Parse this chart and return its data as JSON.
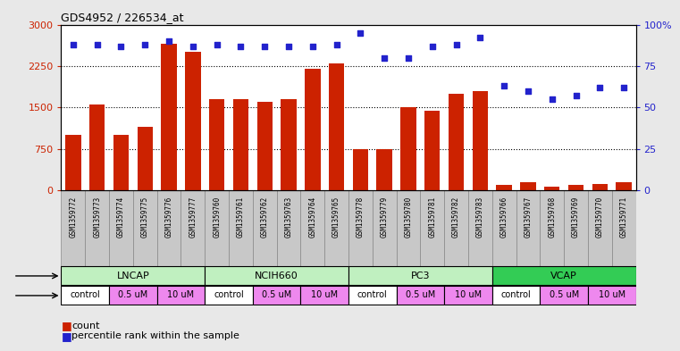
{
  "title": "GDS4952 / 226534_at",
  "samples": [
    "GSM1359772",
    "GSM1359773",
    "GSM1359774",
    "GSM1359775",
    "GSM1359776",
    "GSM1359777",
    "GSM1359760",
    "GSM1359761",
    "GSM1359762",
    "GSM1359763",
    "GSM1359764",
    "GSM1359765",
    "GSM1359778",
    "GSM1359779",
    "GSM1359780",
    "GSM1359781",
    "GSM1359782",
    "GSM1359783",
    "GSM1359766",
    "GSM1359767",
    "GSM1359768",
    "GSM1359769",
    "GSM1359770",
    "GSM1359771"
  ],
  "counts": [
    1000,
    1550,
    1000,
    1150,
    2650,
    2500,
    1650,
    1650,
    1600,
    1650,
    2200,
    2300,
    750,
    750,
    1500,
    1450,
    1750,
    1800,
    100,
    150,
    75,
    100,
    125,
    150
  ],
  "percentile": [
    88,
    88,
    87,
    88,
    90,
    87,
    88,
    87,
    87,
    87,
    87,
    88,
    95,
    80,
    80,
    87,
    88,
    92,
    63,
    60,
    55,
    57,
    62,
    62
  ],
  "bar_color": "#cc2200",
  "dot_color": "#2222cc",
  "ylim_left": [
    0,
    3000
  ],
  "ylim_right": [
    0,
    100
  ],
  "yticks_left": [
    0,
    750,
    1500,
    2250,
    3000
  ],
  "yticks_right": [
    0,
    25,
    50,
    75,
    100
  ],
  "cell_lines": [
    {
      "name": "LNCAP",
      "start": 0,
      "end": 6,
      "color": "#c0f0c0"
    },
    {
      "name": "NCIH660",
      "start": 6,
      "end": 12,
      "color": "#c0f0c0"
    },
    {
      "name": "PC3",
      "start": 12,
      "end": 18,
      "color": "#c0f0c0"
    },
    {
      "name": "VCAP",
      "start": 18,
      "end": 24,
      "color": "#33cc55"
    }
  ],
  "dose_groups": [
    {
      "label": "control",
      "start": 0,
      "end": 2,
      "color": "#ffffff"
    },
    {
      "label": "0.5 uM",
      "start": 2,
      "end": 4,
      "color": "#ee88ee"
    },
    {
      "label": "10 uM",
      "start": 4,
      "end": 6,
      "color": "#ee88ee"
    },
    {
      "label": "control",
      "start": 6,
      "end": 8,
      "color": "#ffffff"
    },
    {
      "label": "0.5 uM",
      "start": 8,
      "end": 10,
      "color": "#ee88ee"
    },
    {
      "label": "10 uM",
      "start": 10,
      "end": 12,
      "color": "#ee88ee"
    },
    {
      "label": "control",
      "start": 12,
      "end": 14,
      "color": "#ffffff"
    },
    {
      "label": "0.5 uM",
      "start": 14,
      "end": 16,
      "color": "#ee88ee"
    },
    {
      "label": "10 uM",
      "start": 16,
      "end": 18,
      "color": "#ee88ee"
    },
    {
      "label": "control",
      "start": 18,
      "end": 20,
      "color": "#ffffff"
    },
    {
      "label": "0.5 uM",
      "start": 20,
      "end": 22,
      "color": "#ee88ee"
    },
    {
      "label": "10 uM",
      "start": 22,
      "end": 24,
      "color": "#ee88ee"
    }
  ],
  "bg_color": "#e8e8e8",
  "plot_bg": "#ffffff",
  "tick_box_color": "#c8c8c8"
}
